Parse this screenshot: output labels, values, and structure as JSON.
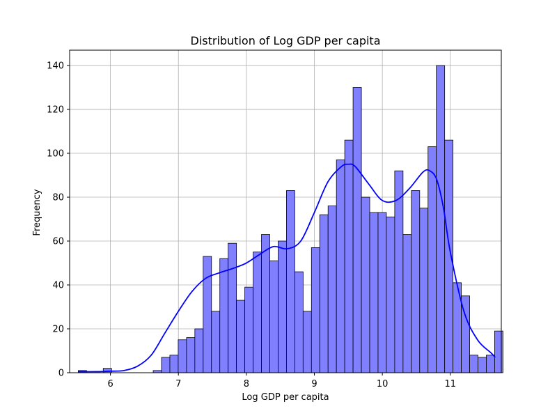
{
  "chart_data": {
    "type": "bar",
    "title": "Distribution of Log GDP per capita",
    "xlabel": "Log GDP per capita",
    "ylabel": "Frequency",
    "xlim": [
      5.4,
      11.75
    ],
    "ylim": [
      0,
      147
    ],
    "x_ticks": [
      6,
      7,
      8,
      9,
      10,
      11
    ],
    "y_ticks": [
      0,
      20,
      40,
      60,
      80,
      100,
      120,
      140
    ],
    "grid": true,
    "bar_color": "#8080ff",
    "bar_edge_color": "#000000",
    "kde_color": "#0000ff",
    "bin_start": 5.527,
    "bin_width": 0.1225,
    "counts": [
      1,
      0,
      0,
      2,
      0,
      0,
      0,
      0,
      0,
      1,
      7,
      8,
      15,
      16,
      20,
      53,
      28,
      52,
      59,
      33,
      39,
      55,
      63,
      51,
      60,
      83,
      46,
      28,
      57,
      72,
      76,
      97,
      106,
      130,
      80,
      73,
      73,
      71,
      92,
      63,
      83,
      75,
      103,
      140,
      106,
      41,
      35,
      8,
      7,
      8,
      19
    ],
    "kde": {
      "x": [
        5.53,
        5.8,
        6.0,
        6.2,
        6.4,
        6.6,
        6.8,
        7.0,
        7.2,
        7.4,
        7.6,
        7.8,
        8.0,
        8.2,
        8.4,
        8.6,
        8.8,
        9.0,
        9.2,
        9.4,
        9.5,
        9.6,
        9.8,
        10.0,
        10.2,
        10.4,
        10.6,
        10.7,
        10.8,
        10.9,
        11.0,
        11.2,
        11.4,
        11.6,
        11.66
      ],
      "y": [
        0.5,
        0.5,
        0.7,
        1.0,
        3.0,
        8.0,
        18.0,
        28.0,
        37.0,
        43.0,
        45.5,
        47.5,
        50.0,
        54.0,
        57.5,
        56.5,
        60.0,
        73.0,
        87.0,
        94.0,
        95.0,
        94.0,
        86.0,
        78.5,
        78.5,
        84.0,
        91.5,
        92.0,
        88.0,
        75.0,
        55.0,
        28.0,
        15.0,
        9.0,
        7.0
      ]
    }
  }
}
